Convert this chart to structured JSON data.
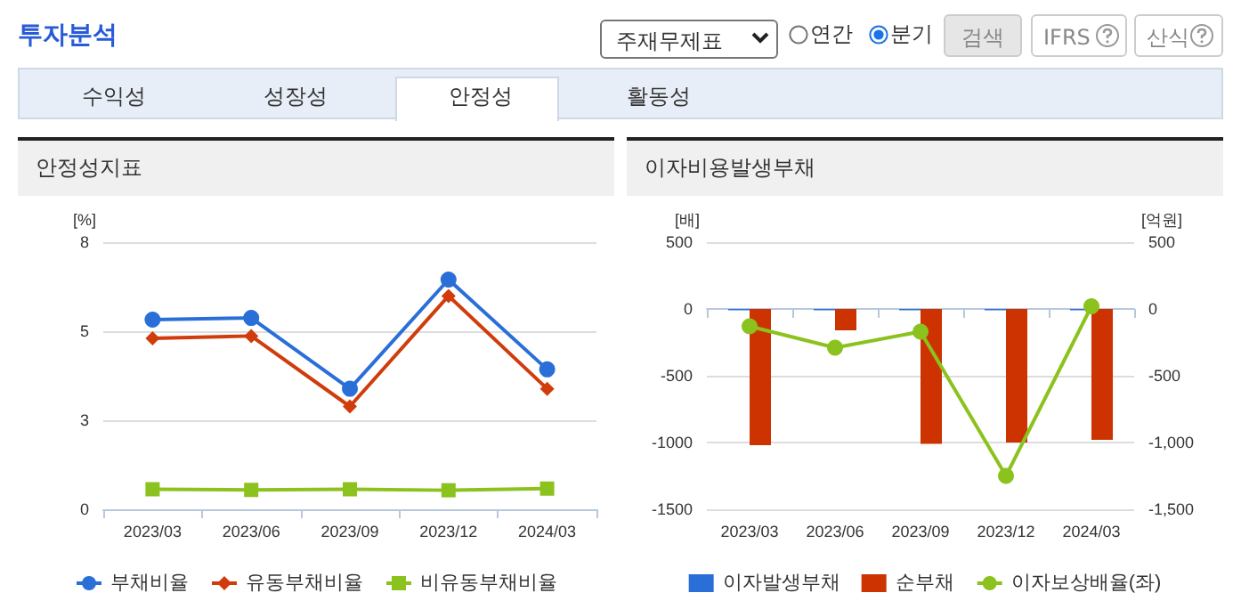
{
  "chart_data": [
    {
      "type": "other",
      "title": "투자분석",
      "annotations": [
        "주재무제표",
        "연간",
        "분기",
        "검색",
        "IFRS",
        "산식",
        "수익성",
        "성장성",
        "안정성",
        "활동성"
      ]
    },
    {
      "type": "line",
      "title": "안정성지표",
      "ylabel": "[%]",
      "categories": [
        "2023/03",
        "2023/06",
        "2023/09",
        "2023/12",
        "2024/03"
      ],
      "series": [
        {
          "name": "부채비율",
          "color": "#2a6fd8",
          "marker": "circle",
          "values": [
            5.68,
            5.73,
            3.61,
            6.88,
            4.19
          ]
        },
        {
          "name": "유동부채비율",
          "color": "#d03c0c",
          "marker": "diamond",
          "values": [
            5.12,
            5.19,
            3.08,
            6.39,
            3.61
          ]
        },
        {
          "name": "비유동부채비율",
          "color": "#8cc21e",
          "marker": "square",
          "values": [
            0.6,
            0.58,
            0.6,
            0.57,
            0.62
          ]
        }
      ],
      "ylim": [
        0,
        8
      ],
      "yticks": [
        0,
        {
          "value": 2.667,
          "label": "3"
        },
        {
          "value": 5.333,
          "label": "5"
        },
        8
      ],
      "grid": "y",
      "legend": "bottom",
      "line_style": "solid"
    },
    {
      "type": "bar",
      "title": "이자비용발생부채",
      "ylabel": "[배]",
      "y2label": "[억원]",
      "categories": [
        "2023/03",
        "2023/06",
        "2023/09",
        "2023/12",
        "2024/03"
      ],
      "series": [
        {
          "name": "이자발생부채",
          "color": "#2a6fd8",
          "axis": "y2",
          "values": [
            -10,
            -10,
            -10,
            -10,
            -10
          ]
        },
        {
          "name": "순부채",
          "color": "#cc3300",
          "axis": "y2",
          "values": [
            -1020,
            -160,
            -1010,
            -1000,
            -980
          ]
        },
        {
          "name": "이자보상배율(좌)",
          "type": "line",
          "color": "#8cc21e",
          "marker": "circle",
          "values": [
            -130,
            -290,
            -170,
            -1250,
            20
          ]
        }
      ],
      "ylim": [
        -1500,
        500
      ],
      "yticks": [
        -1500,
        -1000,
        -500,
        0,
        500
      ],
      "y2lim": [
        -1500,
        500
      ],
      "y2ticks": [
        {
          "value": -1500,
          "label": "-1,500"
        },
        {
          "value": -1000,
          "label": "-1,000"
        },
        -500,
        0,
        500
      ],
      "grid": "y",
      "legend": "bottom"
    }
  ]
}
